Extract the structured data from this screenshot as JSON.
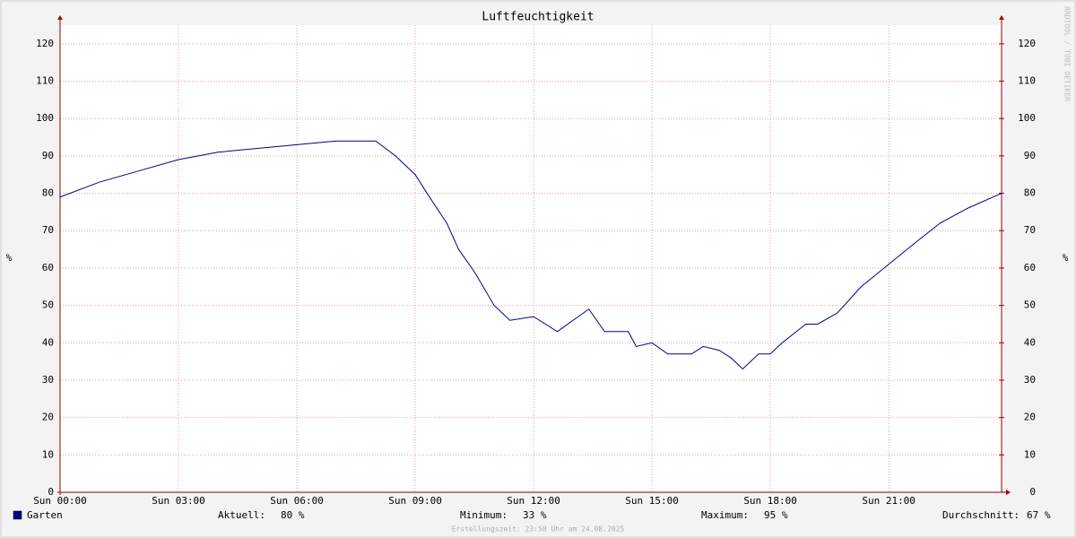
{
  "chart_data": {
    "type": "line",
    "title": "Luftfeuchtigkeit",
    "y_label": "%",
    "y2_label": "%",
    "watermark": "RRDTOOL / TOBI OETIKER",
    "footer": "Erstellungszeit: 23:58 Uhr am 24.08.2025",
    "xlim": [
      0,
      23.86
    ],
    "ylim": [
      0,
      125
    ],
    "y2lim": [
      0,
      125
    ],
    "xticks": [
      {
        "value": 0,
        "label": "Sun 00:00"
      },
      {
        "value": 3,
        "label": "Sun 03:00"
      },
      {
        "value": 6,
        "label": "Sun 06:00"
      },
      {
        "value": 9,
        "label": "Sun 09:00"
      },
      {
        "value": 12,
        "label": "Sun 12:00"
      },
      {
        "value": 15,
        "label": "Sun 15:00"
      },
      {
        "value": 18,
        "label": "Sun 18:00"
      },
      {
        "value": 21,
        "label": "Sun 21:00"
      }
    ],
    "yticks": [
      0,
      10,
      20,
      30,
      40,
      50,
      60,
      70,
      80,
      90,
      100,
      110,
      120
    ],
    "y2ticks": [
      0,
      10,
      20,
      30,
      40,
      50,
      60,
      70,
      80,
      90,
      100,
      110,
      120
    ],
    "grid": true,
    "x": [
      0,
      1,
      2,
      3,
      4,
      5,
      6,
      7,
      8,
      8.5,
      9,
      9.3,
      9.8,
      10.1,
      10.5,
      11,
      11.4,
      12,
      12.6,
      13,
      13.4,
      13.8,
      14.4,
      14.6,
      15,
      15.4,
      16,
      16.3,
      16.7,
      17,
      17.3,
      17.7,
      18,
      18.3,
      18.9,
      19.2,
      19.7,
      20.3,
      21,
      21.7,
      22.3,
      23,
      23.86
    ],
    "series": [
      {
        "name": "Garten",
        "color": "#00008b",
        "values": [
          79,
          83,
          86,
          89,
          91,
          92,
          93,
          94,
          94,
          90,
          85,
          80,
          72,
          65,
          59,
          50,
          46,
          47,
          43,
          46,
          49,
          43,
          43,
          39,
          40,
          37,
          37,
          39,
          38,
          36,
          33,
          37,
          37,
          40,
          45,
          45,
          48,
          55,
          61,
          67,
          72,
          76,
          80
        ]
      }
    ],
    "stats": [
      {
        "label": "Aktuell:",
        "value": "80 %"
      },
      {
        "label": "Minimum:",
        "value": "33 %"
      },
      {
        "label": "Maximum:",
        "value": "95 %"
      },
      {
        "label": "Durchschnitt:",
        "value": "67 %"
      }
    ]
  }
}
